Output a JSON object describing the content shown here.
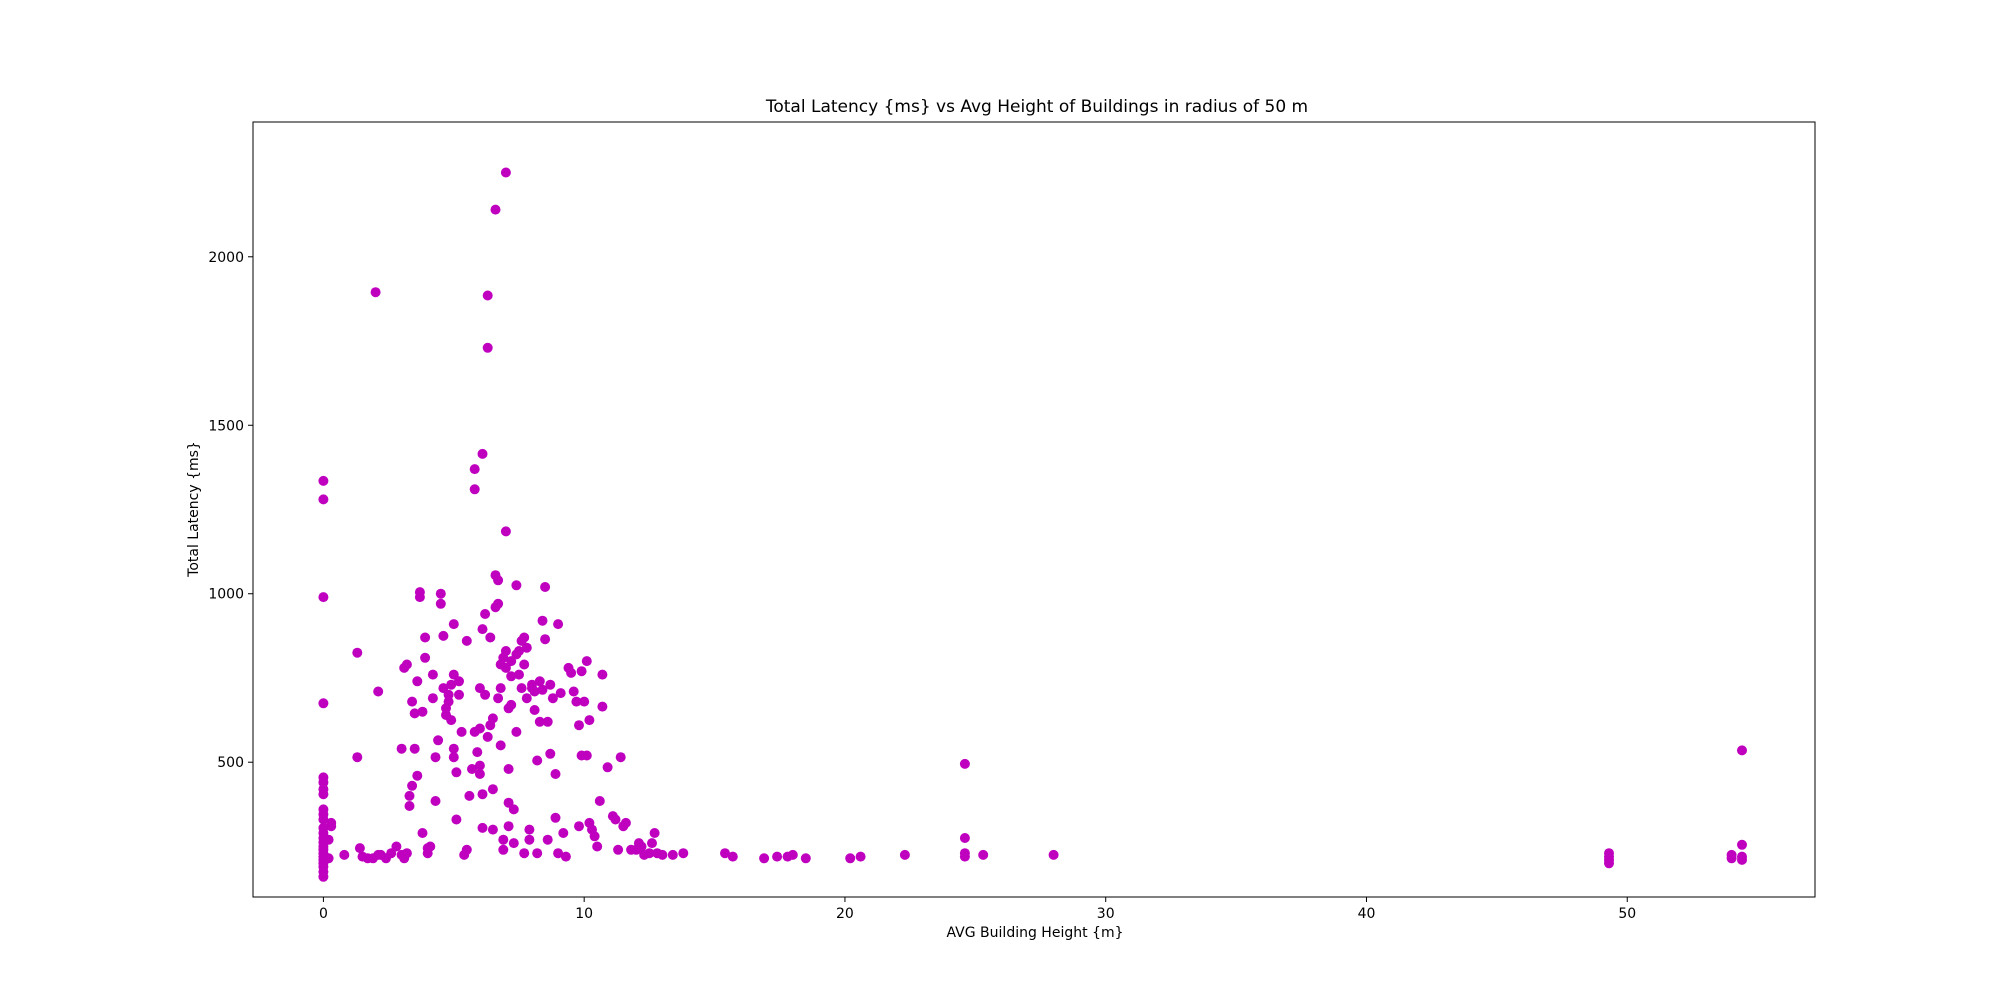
{
  "chart_data": {
    "type": "scatter",
    "title": "Total Latency {ms} vs Avg Height of Buildings in radius of 50 m",
    "xlabel": "AVG Building Height {m}",
    "ylabel": "Total Latency {ms}",
    "xlim": [
      -2.7,
      57.2
    ],
    "ylim": [
      100,
      2400
    ],
    "xticks": [
      0,
      10,
      20,
      30,
      40,
      50
    ],
    "yticks": [
      500,
      1000,
      1500,
      2000
    ],
    "grid": false,
    "legend": "none",
    "marker_color": "#bf00bf",
    "series": [
      {
        "points": [
          [
            0,
            160
          ],
          [
            0,
            175
          ],
          [
            0,
            190
          ],
          [
            0,
            200
          ],
          [
            0,
            210
          ],
          [
            0,
            220
          ],
          [
            0,
            230
          ],
          [
            0,
            240
          ],
          [
            0,
            250
          ],
          [
            0,
            262
          ],
          [
            0,
            275
          ],
          [
            0,
            290
          ],
          [
            0,
            305
          ],
          [
            0,
            330
          ],
          [
            0,
            345
          ],
          [
            0,
            360
          ],
          [
            0,
            405
          ],
          [
            0,
            420
          ],
          [
            0,
            440
          ],
          [
            0,
            455
          ],
          [
            0,
            675
          ],
          [
            0,
            990
          ],
          [
            0,
            1280
          ],
          [
            0,
            1335
          ],
          [
            0.2,
            215
          ],
          [
            0.2,
            270
          ],
          [
            0.3,
            310
          ],
          [
            0.3,
            320
          ],
          [
            0.8,
            225
          ],
          [
            1.3,
            825
          ],
          [
            1.3,
            515
          ],
          [
            1.4,
            245
          ],
          [
            1.5,
            220
          ],
          [
            1.7,
            215
          ],
          [
            1.9,
            215
          ],
          [
            2.1,
            225
          ],
          [
            2.0,
            1895
          ],
          [
            2.1,
            710
          ],
          [
            2.2,
            225
          ],
          [
            2.4,
            215
          ],
          [
            2.6,
            230
          ],
          [
            2.8,
            250
          ],
          [
            3.0,
            225
          ],
          [
            3.1,
            215
          ],
          [
            3.2,
            230
          ],
          [
            3.0,
            540
          ],
          [
            3.1,
            780
          ],
          [
            3.2,
            790
          ],
          [
            3.3,
            400
          ],
          [
            3.3,
            370
          ],
          [
            3.4,
            430
          ],
          [
            3.4,
            680
          ],
          [
            3.5,
            645
          ],
          [
            3.5,
            540
          ],
          [
            3.6,
            460
          ],
          [
            3.6,
            740
          ],
          [
            3.7,
            990
          ],
          [
            3.7,
            1005
          ],
          [
            3.8,
            650
          ],
          [
            3.8,
            290
          ],
          [
            3.9,
            870
          ],
          [
            3.9,
            810
          ],
          [
            4.0,
            230
          ],
          [
            4.0,
            245
          ],
          [
            4.1,
            250
          ],
          [
            4.2,
            760
          ],
          [
            4.2,
            690
          ],
          [
            4.3,
            515
          ],
          [
            4.3,
            385
          ],
          [
            4.4,
            565
          ],
          [
            4.5,
            970
          ],
          [
            4.5,
            1000
          ],
          [
            4.6,
            720
          ],
          [
            4.6,
            875
          ],
          [
            4.7,
            640
          ],
          [
            4.7,
            660
          ],
          [
            4.8,
            680
          ],
          [
            4.8,
            700
          ],
          [
            4.9,
            730
          ],
          [
            4.9,
            625
          ],
          [
            5.0,
            910
          ],
          [
            5.0,
            760
          ],
          [
            5.0,
            515
          ],
          [
            5.0,
            540
          ],
          [
            5.1,
            470
          ],
          [
            5.1,
            330
          ],
          [
            5.2,
            740
          ],
          [
            5.2,
            700
          ],
          [
            5.3,
            590
          ],
          [
            5.4,
            225
          ],
          [
            5.5,
            860
          ],
          [
            5.5,
            240
          ],
          [
            5.6,
            400
          ],
          [
            5.7,
            480
          ],
          [
            5.8,
            590
          ],
          [
            5.8,
            1310
          ],
          [
            5.8,
            1370
          ],
          [
            5.9,
            530
          ],
          [
            6.0,
            600
          ],
          [
            6.0,
            720
          ],
          [
            6.0,
            490
          ],
          [
            6.0,
            465
          ],
          [
            6.1,
            1415
          ],
          [
            6.1,
            305
          ],
          [
            6.1,
            405
          ],
          [
            6.1,
            895
          ],
          [
            6.2,
            940
          ],
          [
            6.2,
            700
          ],
          [
            6.3,
            1730
          ],
          [
            6.3,
            1885
          ],
          [
            6.3,
            575
          ],
          [
            6.4,
            870
          ],
          [
            6.4,
            610
          ],
          [
            6.5,
            630
          ],
          [
            6.5,
            420
          ],
          [
            6.5,
            300
          ],
          [
            6.6,
            1055
          ],
          [
            6.6,
            2140
          ],
          [
            6.6,
            960
          ],
          [
            6.7,
            1040
          ],
          [
            6.7,
            970
          ],
          [
            6.7,
            690
          ],
          [
            6.8,
            790
          ],
          [
            6.8,
            720
          ],
          [
            6.8,
            550
          ],
          [
            6.9,
            810
          ],
          [
            6.9,
            270
          ],
          [
            6.9,
            240
          ],
          [
            7.0,
            2250
          ],
          [
            7.0,
            1185
          ],
          [
            7.0,
            830
          ],
          [
            7.0,
            780
          ],
          [
            7.1,
            660
          ],
          [
            7.1,
            480
          ],
          [
            7.1,
            380
          ],
          [
            7.1,
            310
          ],
          [
            7.2,
            800
          ],
          [
            7.2,
            755
          ],
          [
            7.2,
            670
          ],
          [
            7.3,
            360
          ],
          [
            7.3,
            260
          ],
          [
            7.4,
            1025
          ],
          [
            7.4,
            590
          ],
          [
            7.4,
            820
          ],
          [
            7.5,
            830
          ],
          [
            7.5,
            760
          ],
          [
            7.6,
            860
          ],
          [
            7.6,
            720
          ],
          [
            7.7,
            870
          ],
          [
            7.7,
            790
          ],
          [
            7.7,
            230
          ],
          [
            7.8,
            840
          ],
          [
            7.8,
            690
          ],
          [
            7.9,
            300
          ],
          [
            7.9,
            270
          ],
          [
            8.0,
            720
          ],
          [
            8.0,
            730
          ],
          [
            8.1,
            710
          ],
          [
            8.1,
            655
          ],
          [
            8.2,
            230
          ],
          [
            8.2,
            505
          ],
          [
            8.3,
            740
          ],
          [
            8.3,
            620
          ],
          [
            8.4,
            920
          ],
          [
            8.4,
            715
          ],
          [
            8.5,
            1020
          ],
          [
            8.5,
            865
          ],
          [
            8.6,
            620
          ],
          [
            8.6,
            270
          ],
          [
            8.7,
            525
          ],
          [
            8.7,
            730
          ],
          [
            8.8,
            690
          ],
          [
            8.9,
            465
          ],
          [
            8.9,
            335
          ],
          [
            9.0,
            910
          ],
          [
            9.0,
            230
          ],
          [
            9.1,
            705
          ],
          [
            9.2,
            290
          ],
          [
            9.3,
            220
          ],
          [
            9.4,
            780
          ],
          [
            9.5,
            765
          ],
          [
            9.6,
            710
          ],
          [
            9.7,
            680
          ],
          [
            9.8,
            610
          ],
          [
            9.8,
            310
          ],
          [
            9.9,
            770
          ],
          [
            9.9,
            520
          ],
          [
            10.0,
            680
          ],
          [
            10.1,
            800
          ],
          [
            10.1,
            520
          ],
          [
            10.2,
            625
          ],
          [
            10.2,
            320
          ],
          [
            10.3,
            300
          ],
          [
            10.4,
            280
          ],
          [
            10.5,
            250
          ],
          [
            10.6,
            385
          ],
          [
            10.7,
            760
          ],
          [
            10.7,
            665
          ],
          [
            10.9,
            485
          ],
          [
            11.1,
            340
          ],
          [
            11.2,
            330
          ],
          [
            11.3,
            240
          ],
          [
            11.4,
            515
          ],
          [
            11.5,
            310
          ],
          [
            11.6,
            320
          ],
          [
            11.8,
            240
          ],
          [
            12.0,
            240
          ],
          [
            12.1,
            260
          ],
          [
            12.2,
            250
          ],
          [
            12.3,
            225
          ],
          [
            12.5,
            230
          ],
          [
            12.6,
            260
          ],
          [
            12.7,
            290
          ],
          [
            12.8,
            230
          ],
          [
            13.0,
            225
          ],
          [
            13.4,
            225
          ],
          [
            13.8,
            230
          ],
          [
            15.4,
            230
          ],
          [
            15.7,
            220
          ],
          [
            16.9,
            215
          ],
          [
            17.4,
            220
          ],
          [
            17.8,
            220
          ],
          [
            18.0,
            225
          ],
          [
            18.5,
            215
          ],
          [
            20.2,
            215
          ],
          [
            20.6,
            220
          ],
          [
            22.3,
            225
          ],
          [
            24.6,
            495
          ],
          [
            24.6,
            275
          ],
          [
            24.6,
            230
          ],
          [
            24.6,
            220
          ],
          [
            25.3,
            225
          ],
          [
            28.0,
            225
          ],
          [
            49.3,
            200
          ],
          [
            49.3,
            210
          ],
          [
            49.3,
            220
          ],
          [
            49.3,
            230
          ],
          [
            54.0,
            215
          ],
          [
            54.0,
            225
          ],
          [
            54.4,
            220
          ],
          [
            54.4,
            210
          ],
          [
            54.4,
            255
          ],
          [
            54.4,
            535
          ]
        ]
      }
    ]
  }
}
